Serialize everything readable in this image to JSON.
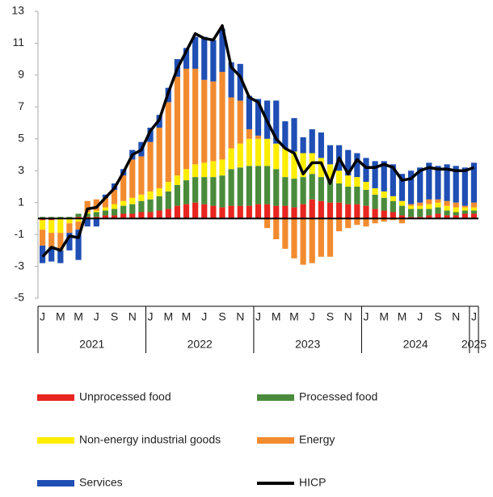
{
  "chart_data": {
    "type": "stacked-bar-line",
    "categories": [
      "J",
      null,
      "M",
      null,
      "M",
      null,
      "J",
      null,
      "S",
      null,
      "N",
      null,
      "J",
      null,
      "M",
      null,
      "M",
      null,
      "J",
      null,
      "S",
      null,
      "N",
      null,
      "J",
      null,
      "M",
      null,
      "M",
      null,
      "J",
      null,
      "S",
      null,
      "N",
      null,
      "J",
      null,
      "M",
      null,
      "M",
      null,
      "J",
      null,
      "S",
      null,
      "N",
      null,
      "J"
    ],
    "years": [
      "2021",
      "2022",
      "2023",
      "2024",
      "2025"
    ],
    "series": [
      {
        "name": "Unprocessed food",
        "color": "#e8261f",
        "values": [
          -0.1,
          -0.1,
          0,
          0,
          0.1,
          0.1,
          0.1,
          0.2,
          0.2,
          0.3,
          0.3,
          0.4,
          0.4,
          0.5,
          0.6,
          0.8,
          0.9,
          1.0,
          0.9,
          0.8,
          0.7,
          0.8,
          0.8,
          0.8,
          0.9,
          0.9,
          0.8,
          0.8,
          0.7,
          0.9,
          1.2,
          1.1,
          1.0,
          1.0,
          0.9,
          0.9,
          0.8,
          0.6,
          0.5,
          0.4,
          0.2,
          0.1,
          0.1,
          0.2,
          0.3,
          0.2,
          0.2,
          0.3,
          0.3
        ]
      },
      {
        "name": "Processed food",
        "color": "#4a8b3b",
        "values": [
          0.1,
          0.1,
          0.1,
          0.1,
          0.2,
          0.2,
          0.3,
          0.3,
          0.4,
          0.5,
          0.6,
          0.7,
          0.8,
          0.9,
          1.1,
          1.3,
          1.5,
          1.6,
          1.7,
          1.8,
          2.0,
          2.3,
          2.4,
          2.5,
          2.4,
          2.4,
          2.3,
          1.8,
          1.8,
          1.7,
          1.6,
          1.5,
          1.4,
          1.2,
          1.1,
          1.1,
          1.0,
          0.9,
          0.8,
          0.7,
          0.6,
          0.5,
          0.5,
          0.4,
          0.4,
          0.3,
          0.2,
          0.2,
          0.2
        ]
      },
      {
        "name": "Non-energy industrial goods",
        "color": "#ffed00",
        "values": [
          -0.6,
          -0.8,
          -0.9,
          -0.3,
          -0.2,
          0.1,
          0.1,
          0.2,
          0.3,
          0.3,
          0.4,
          0.4,
          0.5,
          0.5,
          0.6,
          0.6,
          0.7,
          0.8,
          0.9,
          1.0,
          1.0,
          1.3,
          1.5,
          1.7,
          1.7,
          1.7,
          1.6,
          1.8,
          1.7,
          1.5,
          1.3,
          1.2,
          1.0,
          0.8,
          0.7,
          0.6,
          0.5,
          0.4,
          0.4,
          0.3,
          0.3,
          0.2,
          0.2,
          0.3,
          0.3,
          0.3,
          0.3,
          0.2,
          0.2
        ]
      },
      {
        "name": "Energy",
        "color": "#f28b30",
        "values": [
          -1.0,
          -0.9,
          -1.1,
          -0.6,
          -0.5,
          0.7,
          0.7,
          0.6,
          0.9,
          1.6,
          2.4,
          2.4,
          3.1,
          3.8,
          5.0,
          6.2,
          6.3,
          6.0,
          5.2,
          5.0,
          5.5,
          3.2,
          2.7,
          0.6,
          0.2,
          -0.6,
          -1.3,
          -1.9,
          -2.5,
          -2.9,
          -2.8,
          -2.4,
          -2.4,
          -0.8,
          -0.6,
          -0.4,
          -0.5,
          -0.3,
          -0.2,
          -0.1,
          -0.3,
          0.1,
          0.2,
          0.3,
          0.2,
          0.3,
          0.3,
          0.1,
          0.3
        ]
      },
      {
        "name": "Services",
        "color": "#1f4eb4",
        "values": [
          -1.1,
          -0.9,
          -0.8,
          -1.1,
          -1.9,
          -0.5,
          -0.5,
          0.2,
          0.4,
          0.4,
          0.6,
          0.9,
          0.9,
          0.8,
          0.9,
          1.1,
          1.3,
          2.0,
          2.7,
          2.6,
          2.7,
          2.2,
          2.3,
          2.1,
          2.3,
          2.4,
          2.7,
          1.7,
          2.1,
          1.0,
          1.5,
          1.6,
          1.2,
          1.6,
          1.6,
          1.5,
          1.5,
          1.7,
          1.9,
          2.0,
          1.7,
          2.1,
          2.2,
          2.3,
          2.1,
          2.3,
          2.3,
          2.4,
          2.5
        ]
      }
    ],
    "line": {
      "name": "HICP",
      "color": "#000000",
      "values": [
        -2.4,
        -1.8,
        -2.0,
        -1.1,
        -1.2,
        0.6,
        0.7,
        1.3,
        1.9,
        2.9,
        4.0,
        4.3,
        5.5,
        6.2,
        7.9,
        9.4,
        10.5,
        11.6,
        11.3,
        11.2,
        12.1,
        9.5,
        8.9,
        7.6,
        7.3,
        6.1,
        5.0,
        4.4,
        4.1,
        2.8,
        3.5,
        3.5,
        2.2,
        3.8,
        2.8,
        3.7,
        3.2,
        3.2,
        3.4,
        3.2,
        2.4,
        2.5,
        3.0,
        3.2,
        3.1,
        3.1,
        3.0,
        3.0,
        3.2
      ]
    },
    "ylim": [
      -5,
      13
    ],
    "yticks": [
      -5,
      -3,
      -1,
      1,
      3,
      5,
      7,
      9,
      11,
      13
    ]
  }
}
